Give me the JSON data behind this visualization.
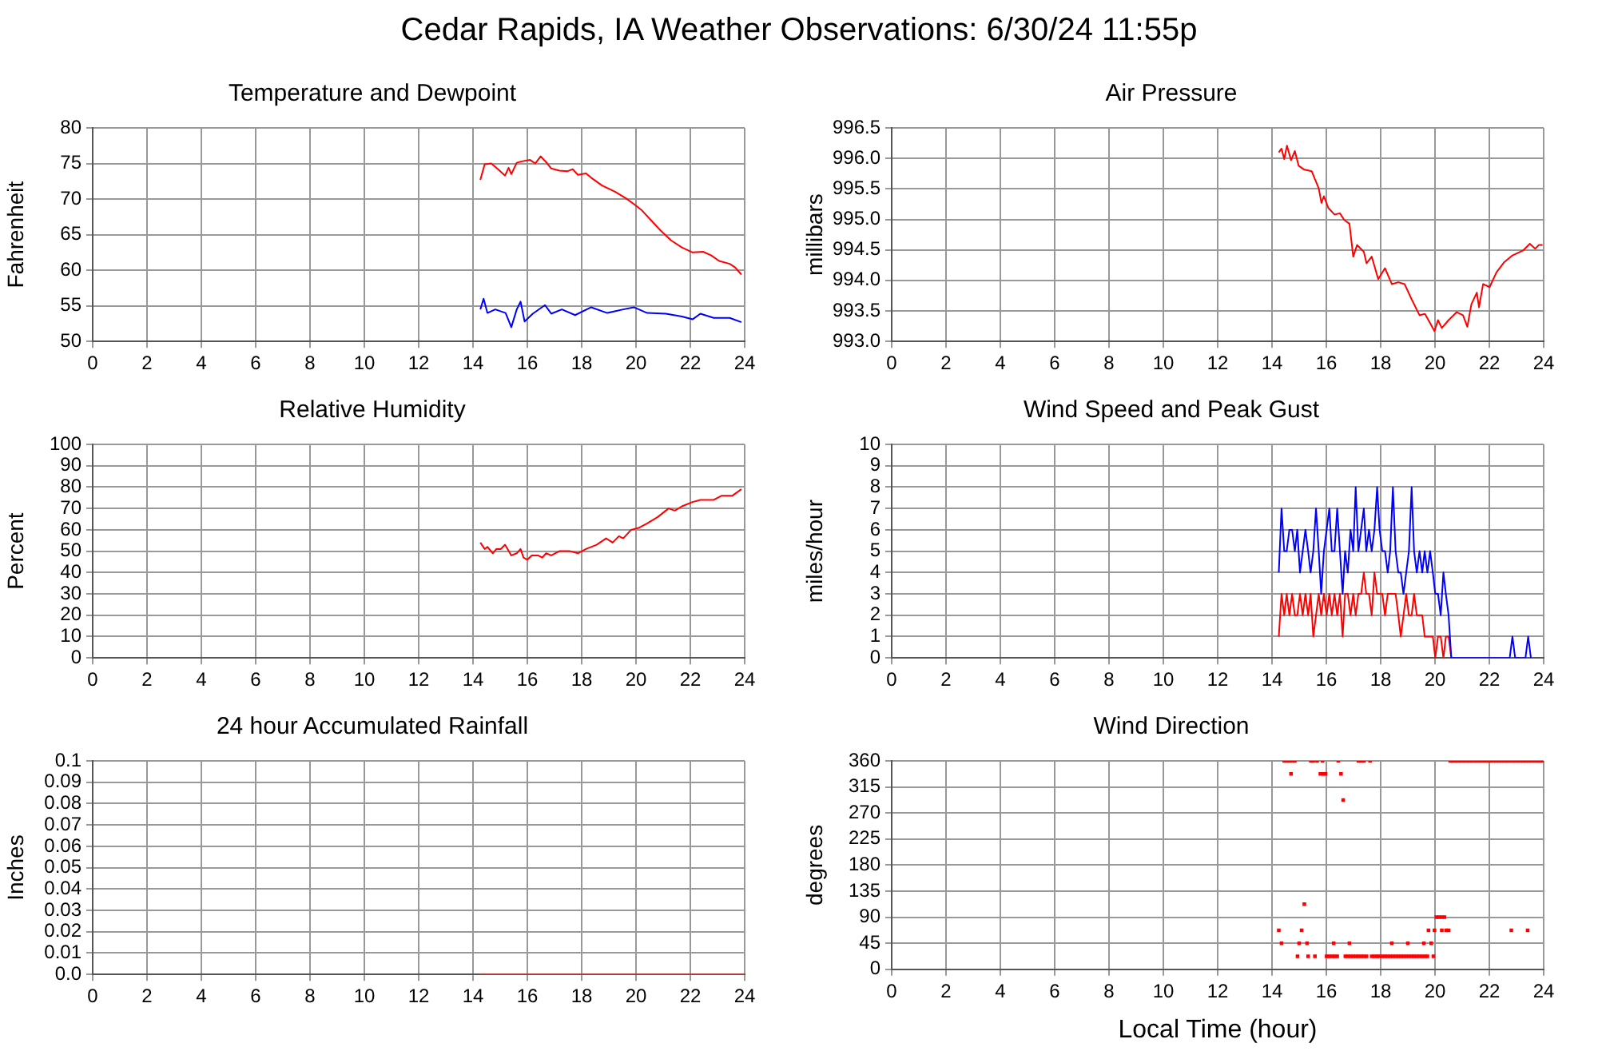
{
  "chart_data": [
    {
      "type": "other",
      "title": "Cedar Rapids, IA Weather Observations: 6/30/24 11:55p"
    },
    {
      "type": "line",
      "title": "Temperature and Dewpoint",
      "ylabel": "Fahrenheit",
      "xlim": [
        0,
        24
      ],
      "xticks": [
        0,
        2,
        4,
        6,
        8,
        10,
        12,
        14,
        16,
        18,
        20,
        22,
        24
      ],
      "ylim": [
        50,
        80
      ],
      "yticks": [
        50,
        55,
        60,
        65,
        70,
        75,
        80
      ],
      "grid": true,
      "series": [
        {
          "color": "#ff0000",
          "x": [
            14.27,
            14.43,
            14.67,
            14.92,
            15.18,
            15.31,
            15.41,
            15.61,
            15.8,
            16.1,
            16.29,
            16.49,
            16.69,
            16.88,
            17.18,
            17.47,
            17.67,
            17.86,
            18.16,
            18.35,
            18.75,
            19.24,
            19.63,
            19.92,
            20.22,
            20.51,
            20.9,
            21.29,
            21.69,
            22.08,
            22.47,
            22.76,
            23.06,
            23.45,
            23.65,
            23.88
          ],
          "values": [
            72.7,
            74.9,
            75.0,
            74.2,
            73.3,
            74.4,
            73.5,
            75.1,
            75.3,
            75.5,
            75.0,
            76.0,
            75.2,
            74.3,
            74.0,
            73.9,
            74.2,
            73.4,
            73.6,
            73.0,
            71.9,
            71.0,
            70.1,
            69.3,
            68.4,
            67.2,
            65.6,
            64.2,
            63.2,
            62.5,
            62.6,
            62.1,
            61.3,
            60.9,
            60.4,
            59.4
          ]
        },
        {
          "color": "#0000ff",
          "x": [
            14.27,
            14.39,
            14.53,
            14.82,
            15.2,
            15.41,
            15.61,
            15.75,
            15.9,
            16.2,
            16.65,
            16.88,
            17.27,
            17.76,
            18.35,
            18.94,
            19.53,
            19.92,
            20.41,
            21.1,
            21.69,
            22.08,
            22.37,
            22.86,
            23.45,
            23.88
          ],
          "values": [
            54.5,
            56.0,
            54.0,
            54.5,
            54.0,
            52.0,
            54.5,
            55.6,
            52.8,
            53.9,
            55.1,
            53.9,
            54.5,
            53.7,
            54.8,
            54.0,
            54.5,
            54.8,
            54.0,
            53.9,
            53.5,
            53.1,
            53.9,
            53.3,
            53.3,
            52.7
          ]
        }
      ]
    },
    {
      "type": "line",
      "title": "Air Pressure",
      "ylabel": "millibars",
      "xlim": [
        0,
        24
      ],
      "xticks": [
        0,
        2,
        4,
        6,
        8,
        10,
        12,
        14,
        16,
        18,
        20,
        22,
        24
      ],
      "ylim": [
        993,
        996.5
      ],
      "yticks": [
        {
          "value": 993,
          "label": "993.0"
        },
        993.5,
        {
          "value": 994,
          "label": "994.0"
        },
        994.5,
        {
          "value": 995,
          "label": "995.0"
        },
        995.5,
        {
          "value": 996,
          "label": "996.0"
        },
        996.5
      ],
      "grid": true,
      "series": [
        {
          "color": "#ff0000",
          "x": [
            14.25,
            14.35,
            14.45,
            14.55,
            14.7,
            14.84,
            14.98,
            15.17,
            15.46,
            15.72,
            15.82,
            15.91,
            16.07,
            16.3,
            16.5,
            16.66,
            16.85,
            16.99,
            17.13,
            17.38,
            17.48,
            17.67,
            17.91,
            18.16,
            18.41,
            18.65,
            18.88,
            19.14,
            19.43,
            19.63,
            19.82,
            19.98,
            20.11,
            20.25,
            20.5,
            20.8,
            21.03,
            21.19,
            21.34,
            21.54,
            21.62,
            21.77,
            22.01,
            22.26,
            22.55,
            22.85,
            23.24,
            23.49,
            23.69,
            23.82,
            23.96
          ],
          "values": [
            996.1,
            996.16,
            995.99,
            996.21,
            995.97,
            996.12,
            995.88,
            995.82,
            995.79,
            995.51,
            995.27,
            995.38,
            995.19,
            995.08,
            995.1,
            994.99,
            994.93,
            994.39,
            994.58,
            994.47,
            994.28,
            994.39,
            994.02,
            994.2,
            993.94,
            993.97,
            993.94,
            993.69,
            993.43,
            993.45,
            993.3,
            993.17,
            993.35,
            993.22,
            993.35,
            993.48,
            993.43,
            993.24,
            993.61,
            993.8,
            993.56,
            993.94,
            993.89,
            994.13,
            994.3,
            994.41,
            994.49,
            994.6,
            994.52,
            994.58,
            994.58
          ]
        }
      ]
    },
    {
      "type": "line",
      "title": "Relative Humidity",
      "ylabel": "Percent",
      "xlim": [
        0,
        24
      ],
      "xticks": [
        0,
        2,
        4,
        6,
        8,
        10,
        12,
        14,
        16,
        18,
        20,
        22,
        24
      ],
      "ylim": [
        0,
        100
      ],
      "yticks": [
        0,
        10,
        20,
        30,
        40,
        50,
        60,
        70,
        80,
        90,
        100
      ],
      "grid": true,
      "series": [
        {
          "color": "#ff0000",
          "x": [
            14.27,
            14.43,
            14.53,
            14.73,
            14.86,
            15.02,
            15.18,
            15.41,
            15.61,
            15.75,
            15.86,
            16.0,
            16.16,
            16.39,
            16.55,
            16.69,
            16.88,
            17.18,
            17.57,
            17.86,
            18.16,
            18.55,
            18.9,
            19.14,
            19.37,
            19.53,
            19.82,
            20.12,
            20.41,
            20.8,
            21.2,
            21.43,
            21.69,
            22.08,
            22.37,
            22.86,
            23.16,
            23.55,
            23.88
          ],
          "values": [
            54,
            51,
            52,
            49,
            51,
            51,
            53,
            48,
            49,
            51,
            47,
            46,
            48,
            48,
            47,
            49,
            48,
            50,
            50,
            49,
            51,
            53,
            56,
            54,
            57,
            56,
            60,
            61,
            63,
            66,
            70,
            69,
            71,
            73,
            74,
            74,
            76,
            76,
            79
          ]
        }
      ]
    },
    {
      "type": "line",
      "title": "Wind Speed and Peak Gust",
      "ylabel": "miles/hour",
      "xlim": [
        0,
        24
      ],
      "xticks": [
        0,
        2,
        4,
        6,
        8,
        10,
        12,
        14,
        16,
        18,
        20,
        22,
        24
      ],
      "ylim": [
        0,
        10
      ],
      "yticks": [
        0,
        1,
        2,
        3,
        4,
        5,
        6,
        7,
        8,
        9,
        10
      ],
      "grid": true,
      "series": [
        {
          "color": "#0000ff",
          "x": [
            14.25,
            14.35,
            14.45,
            14.54,
            14.64,
            14.74,
            14.84,
            14.93,
            15.03,
            15.13,
            15.23,
            15.33,
            15.42,
            15.52,
            15.62,
            15.72,
            15.81,
            15.91,
            16.01,
            16.11,
            16.2,
            16.3,
            16.4,
            16.5,
            16.6,
            16.69,
            16.79,
            16.89,
            16.99,
            17.08,
            17.18,
            17.28,
            17.38,
            17.47,
            17.57,
            17.67,
            17.77,
            17.87,
            17.96,
            18.06,
            18.16,
            18.26,
            18.35,
            18.45,
            18.55,
            18.65,
            18.74,
            18.84,
            18.94,
            19.04,
            19.14,
            19.23,
            19.33,
            19.43,
            19.53,
            19.62,
            19.72,
            19.82,
            19.92,
            20.01,
            20.11,
            20.21,
            20.31,
            20.4,
            20.5,
            20.6,
            22.75,
            22.85,
            22.95,
            23.33,
            23.43,
            23.53
          ],
          "values": [
            4,
            7,
            5,
            5,
            6,
            6,
            5,
            6,
            4,
            5,
            6,
            5,
            4,
            5,
            7,
            5,
            3,
            5,
            6,
            7,
            5,
            5,
            7,
            5,
            3,
            5,
            4,
            6,
            5,
            8,
            5,
            6,
            7,
            5,
            6,
            5,
            6,
            8,
            6,
            5,
            5,
            4,
            5,
            8,
            5,
            4,
            4,
            3,
            4,
            5,
            8,
            5,
            4,
            5,
            4,
            5,
            4,
            5,
            4,
            3,
            3,
            2,
            4,
            3,
            2,
            0,
            0,
            1,
            0,
            0,
            1,
            0
          ]
        },
        {
          "color": "#ff0000",
          "x": [
            14.25,
            14.35,
            14.45,
            14.54,
            14.64,
            14.74,
            14.84,
            14.93,
            15.03,
            15.13,
            15.23,
            15.33,
            15.42,
            15.52,
            15.62,
            15.72,
            15.81,
            15.91,
            16.01,
            16.11,
            16.2,
            16.3,
            16.4,
            16.5,
            16.6,
            16.69,
            16.79,
            16.89,
            16.99,
            17.08,
            17.18,
            17.28,
            17.38,
            17.47,
            17.57,
            17.67,
            17.77,
            17.87,
            17.96,
            18.06,
            18.16,
            18.26,
            18.35,
            18.45,
            18.55,
            18.65,
            18.74,
            18.84,
            18.94,
            19.04,
            19.14,
            19.23,
            19.33,
            19.43,
            19.53,
            19.62,
            19.72,
            19.82,
            19.92,
            20.01,
            20.11,
            20.21,
            20.31,
            20.4,
            20.5,
            20.6
          ],
          "values": [
            1,
            3,
            2,
            3,
            2,
            3,
            2,
            2,
            3,
            2,
            3,
            2,
            3,
            1,
            2,
            3,
            2,
            3,
            2,
            3,
            2,
            3,
            2,
            3,
            1,
            3,
            3,
            2,
            3,
            2,
            3,
            3,
            4,
            3,
            3,
            2,
            4,
            3,
            3,
            3,
            2,
            3,
            3,
            3,
            3,
            2,
            1,
            2,
            3,
            2,
            2,
            3,
            2,
            2,
            2,
            1,
            1,
            1,
            1,
            0,
            1,
            1,
            0,
            1,
            1,
            0
          ]
        }
      ]
    },
    {
      "type": "line",
      "title": "24 hour Accumulated Rainfall",
      "ylabel": "Inches",
      "xlim": [
        0,
        24
      ],
      "xticks": [
        0,
        2,
        4,
        6,
        8,
        10,
        12,
        14,
        16,
        18,
        20,
        22,
        24
      ],
      "ylim": [
        0,
        0.1
      ],
      "yticks": [
        {
          "value": 0,
          "label": "0.0"
        },
        0.01,
        0.02,
        0.03,
        0.04,
        0.05,
        0.06,
        0.07,
        0.08,
        0.09,
        0.1
      ],
      "grid": true,
      "series": [
        {
          "color": "#d04040",
          "x": [
            14.25,
            24
          ],
          "values": [
            0,
            0
          ]
        }
      ]
    },
    {
      "type": "scatter",
      "title": "Wind Direction",
      "xlabel": "Local Time (hour)",
      "ylabel": "degrees",
      "xlim": [
        0,
        24
      ],
      "xticks": [
        0,
        2,
        4,
        6,
        8,
        10,
        12,
        14,
        16,
        18,
        20,
        22,
        24
      ],
      "ylim": [
        0,
        360
      ],
      "yticks": [
        0,
        45,
        90,
        135,
        180,
        225,
        270,
        315,
        360
      ],
      "grid": true,
      "marker": "square",
      "series": [
        {
          "color": "#ff0000",
          "x": [
            14.45,
            14.55,
            14.64,
            14.74,
            14.84,
            15.43,
            15.52,
            15.66,
            15.86,
            16.44,
            17.18,
            17.28,
            17.38,
            17.61,
            20.56,
            20.65,
            20.75,
            20.85,
            20.95,
            21.05,
            21.15,
            21.25,
            21.35,
            21.45,
            21.55,
            21.65,
            21.75,
            21.85,
            21.95,
            22.05,
            22.15,
            22.25,
            22.35,
            22.45,
            22.55,
            22.65,
            22.75,
            22.85,
            22.95,
            23.05,
            23.15,
            23.25,
            23.35,
            23.45,
            23.55,
            23.65,
            23.75,
            23.85,
            23.95,
            14.7,
            15.78,
            15.88,
            15.97,
            16.54,
            16.62,
            15.19,
            20.05,
            20.15,
            20.25,
            20.35,
            14.25,
            15.09,
            19.76,
            19.98,
            20.25,
            20.41,
            20.5,
            22.81,
            23.41,
            14.35,
            15.0,
            15.29,
            16.27,
            16.85,
            18.41,
            19.0,
            19.59,
            19.86,
            14.94,
            15.33,
            15.58,
            16.01,
            16.11,
            16.21,
            16.3,
            16.4,
            16.7,
            16.79,
            16.89,
            16.99,
            17.09,
            17.18,
            17.28,
            17.38,
            17.48,
            17.67,
            17.77,
            17.87,
            17.96,
            18.06,
            18.16,
            18.26,
            18.36,
            18.45,
            18.55,
            18.65,
            18.75,
            18.84,
            18.94,
            19.04,
            19.14,
            19.23,
            19.33,
            19.43,
            19.53,
            19.63,
            19.72,
            19.94
          ],
          "values": [
            360,
            360,
            360,
            360,
            360,
            360,
            360,
            360,
            360,
            360,
            360,
            360,
            360,
            360,
            360,
            360,
            360,
            360,
            360,
            360,
            360,
            360,
            360,
            360,
            360,
            360,
            360,
            360,
            360,
            360,
            360,
            360,
            360,
            360,
            360,
            360,
            360,
            360,
            360,
            360,
            360,
            360,
            360,
            360,
            360,
            360,
            360,
            360,
            360,
            337.5,
            337.5,
            337.5,
            337.5,
            337.5,
            292.5,
            112.5,
            90,
            90,
            90,
            90,
            67.5,
            67.5,
            67.5,
            67.5,
            67.5,
            67.5,
            67.5,
            67.5,
            67.5,
            45,
            45,
            45,
            45,
            45,
            45,
            45,
            45,
            45,
            22.5,
            22.5,
            22.5,
            22.5,
            22.5,
            22.5,
            22.5,
            22.5,
            22.5,
            22.5,
            22.5,
            22.5,
            22.5,
            22.5,
            22.5,
            22.5,
            22.5,
            22.5,
            22.5,
            22.5,
            22.5,
            22.5,
            22.5,
            22.5,
            22.5,
            22.5,
            22.5,
            22.5,
            22.5,
            22.5,
            22.5,
            22.5,
            22.5,
            22.5,
            22.5,
            22.5,
            22.5,
            22.5,
            22.5,
            22.5
          ]
        }
      ]
    }
  ]
}
